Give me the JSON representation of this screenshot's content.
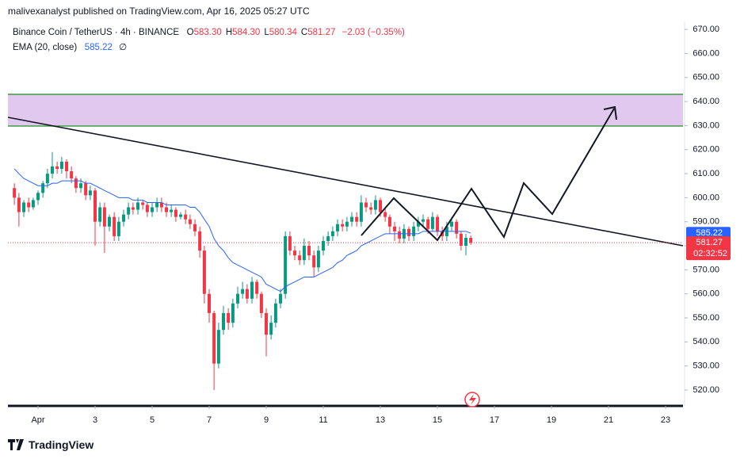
{
  "header": {
    "byline": "malivexanalyst published on TradingView.com, Apr 16, 2025 05:27 UTC"
  },
  "chart_data": {
    "type": "candlestick",
    "title": "Binance Coin / TetherUS · 4h · BINANCE",
    "ohlc_legend": [
      {
        "label": "O",
        "value": "583.30"
      },
      {
        "label": "H",
        "value": "584.30"
      },
      {
        "label": "L",
        "value": "580.34"
      },
      {
        "label": "C",
        "value": "581.27"
      }
    ],
    "change": "−2.03 (−0.35%)",
    "up_color": "#089981",
    "down_color": "#f23645",
    "x": [
      -0.83,
      -0.67,
      -0.5,
      -0.33,
      -0.17,
      0,
      0.17,
      0.33,
      0.5,
      0.67,
      0.83,
      1,
      1.17,
      1.33,
      1.5,
      1.67,
      1.83,
      2,
      2.17,
      2.33,
      2.5,
      2.67,
      2.83,
      3,
      3.17,
      3.33,
      3.5,
      3.67,
      3.83,
      4,
      4.17,
      4.33,
      4.5,
      4.67,
      4.83,
      5,
      5.17,
      5.33,
      5.5,
      5.67,
      5.83,
      6,
      6.17,
      6.33,
      6.5,
      6.67,
      6.83,
      7,
      7.17,
      7.33,
      7.5,
      7.67,
      7.83,
      8,
      8.17,
      8.33,
      8.5,
      8.67,
      8.83,
      9,
      9.17,
      9.33,
      9.5,
      9.67,
      9.83,
      10,
      10.17,
      10.33,
      10.5,
      10.67,
      10.83,
      11,
      11.17,
      11.33,
      11.5,
      11.67,
      11.83,
      12,
      12.17,
      12.33,
      12.5,
      12.67,
      12.83,
      13,
      13.17,
      13.33,
      13.5,
      13.67,
      13.83,
      14,
      14.17,
      14.33,
      14.5,
      14.67,
      14.83,
      15,
      15.17
    ],
    "open": [
      604,
      600,
      594,
      598,
      596,
      599,
      602,
      606,
      610,
      613,
      612,
      615,
      611,
      608,
      604,
      606,
      601,
      603,
      590,
      596,
      588,
      592,
      584,
      590,
      593,
      596,
      595,
      598,
      597,
      594,
      596,
      598,
      596,
      594,
      595,
      592,
      593,
      591,
      589,
      586,
      578,
      560,
      552,
      531,
      545,
      552,
      548,
      556,
      560,
      562,
      558,
      565,
      560,
      552,
      543,
      548,
      556,
      560,
      584,
      578,
      576,
      574,
      580,
      576,
      571,
      578,
      582,
      584,
      586,
      589,
      588,
      590,
      592,
      590,
      598,
      596,
      595,
      599,
      594,
      592,
      588,
      586,
      583,
      587,
      584,
      588,
      590,
      591,
      587,
      592,
      586,
      584,
      588,
      590,
      585,
      580,
      583.3
    ],
    "high": [
      606,
      602,
      599,
      600,
      600,
      603,
      607,
      612,
      619,
      615,
      617,
      616,
      613,
      609,
      608,
      607,
      605,
      604,
      598,
      598,
      593,
      594,
      592,
      595,
      598,
      598,
      600,
      599,
      598,
      598,
      600,
      600,
      598,
      597,
      596,
      594,
      595,
      593,
      591,
      588,
      580,
      562,
      553,
      548,
      555,
      554,
      558,
      563,
      565,
      564,
      567,
      566,
      561,
      554,
      551,
      558,
      562,
      586,
      586,
      580,
      578,
      583,
      582,
      578,
      580,
      584,
      586,
      588,
      591,
      591,
      592,
      594,
      594,
      601,
      600,
      598,
      601,
      600,
      596,
      593,
      590,
      588,
      589,
      588,
      590,
      592,
      593,
      592,
      594,
      593,
      588,
      590,
      592,
      591,
      586,
      585,
      584.3
    ],
    "low": [
      597,
      588,
      592,
      594,
      595,
      597,
      600,
      604,
      608,
      610,
      610,
      608,
      606,
      602,
      602,
      599,
      599,
      580,
      588,
      577,
      586,
      582,
      582,
      588,
      591,
      593,
      593,
      595,
      592,
      592,
      594,
      594,
      592,
      592,
      590,
      591,
      589,
      587,
      584,
      575,
      556,
      548,
      520,
      529,
      543,
      545,
      546,
      554,
      558,
      556,
      556,
      558,
      550,
      534,
      541,
      546,
      554,
      558,
      576,
      574,
      572,
      572,
      574,
      567,
      569,
      576,
      580,
      582,
      584,
      586,
      586,
      588,
      588,
      588,
      594,
      593,
      593,
      592,
      590,
      585,
      582,
      581,
      581,
      582,
      582,
      586,
      588,
      585,
      586,
      584,
      582,
      582,
      586,
      583,
      578,
      576,
      580.34
    ],
    "close": [
      600,
      594,
      598,
      596,
      599,
      602,
      606,
      610,
      613,
      612,
      615,
      611,
      608,
      604,
      606,
      601,
      603,
      590,
      596,
      588,
      592,
      584,
      590,
      593,
      596,
      595,
      598,
      597,
      594,
      596,
      598,
      596,
      594,
      595,
      592,
      593,
      591,
      589,
      586,
      578,
      560,
      552,
      531,
      545,
      552,
      548,
      556,
      560,
      562,
      558,
      565,
      560,
      552,
      543,
      548,
      556,
      560,
      584,
      578,
      576,
      574,
      580,
      576,
      571,
      578,
      582,
      584,
      586,
      589,
      588,
      590,
      592,
      590,
      598,
      596,
      595,
      599,
      594,
      592,
      588,
      586,
      583,
      587,
      584,
      588,
      590,
      591,
      587,
      592,
      586,
      584,
      588,
      590,
      585,
      580,
      583.3,
      581.27
    ],
    "series": [
      {
        "name": "EMA (20, close)",
        "color": "#2962ff",
        "values": [
          612,
          610,
          608,
          607,
          606,
          605,
          605,
          605,
          606,
          606,
          607,
          607,
          607,
          607,
          607,
          606,
          606,
          605,
          604,
          603,
          602,
          601,
          600,
          600,
          600,
          599,
          599,
          599,
          598,
          598,
          598,
          598,
          597,
          597,
          597,
          597,
          597,
          596,
          596,
          594,
          591,
          588,
          583,
          580,
          578,
          575,
          573,
          572,
          571,
          570,
          569,
          568,
          567,
          564,
          563,
          562,
          561,
          563,
          564,
          565,
          566,
          567,
          567,
          567,
          568,
          569,
          570,
          571,
          573,
          574,
          576,
          577,
          578,
          580,
          581,
          582,
          583,
          584,
          585,
          585,
          585,
          585,
          585,
          585,
          585,
          585,
          586,
          586,
          586,
          586,
          586,
          586,
          586,
          586,
          586,
          586,
          585.22
        ]
      }
    ],
    "ema_flag": "∅",
    "countdown": "02:32:52",
    "grid": false,
    "xlim": [
      -1.056,
      22.61
    ],
    "xticks": [
      {
        "value": 0,
        "label": "Apr"
      },
      {
        "value": 2,
        "label": "3"
      },
      {
        "value": 4,
        "label": "5"
      },
      {
        "value": 6,
        "label": "7"
      },
      {
        "value": 8,
        "label": "9"
      },
      {
        "value": 10,
        "label": "11"
      },
      {
        "value": 12,
        "label": "13"
      },
      {
        "value": 14,
        "label": "15"
      },
      {
        "value": 16,
        "label": "17"
      },
      {
        "value": 18,
        "label": "19"
      },
      {
        "value": 20,
        "label": "21"
      },
      {
        "value": 22,
        "label": "23"
      }
    ],
    "ylim": [
      513.4,
      673
    ],
    "yticks": [
      {
        "value": 520,
        "label": "520.00"
      },
      {
        "value": 530,
        "label": "530.00"
      },
      {
        "value": 540,
        "label": "540.00"
      },
      {
        "value": 550,
        "label": "550.00"
      },
      {
        "value": 560,
        "label": "560.00"
      },
      {
        "value": 570,
        "label": "570.00"
      },
      {
        "value": 580,
        "label": "580.00"
      },
      {
        "value": 590,
        "label": "590.00"
      },
      {
        "value": 600,
        "label": "600.00"
      },
      {
        "value": 610,
        "label": "610.00"
      },
      {
        "value": 620,
        "label": "620.00"
      },
      {
        "value": 630,
        "label": "630.00"
      },
      {
        "value": 640,
        "label": "640.00"
      },
      {
        "value": 650,
        "label": "650.00"
      },
      {
        "value": 660,
        "label": "660.00"
      },
      {
        "value": 670,
        "label": "670.00"
      }
    ]
  },
  "footer": {
    "brand": "TradingView"
  }
}
